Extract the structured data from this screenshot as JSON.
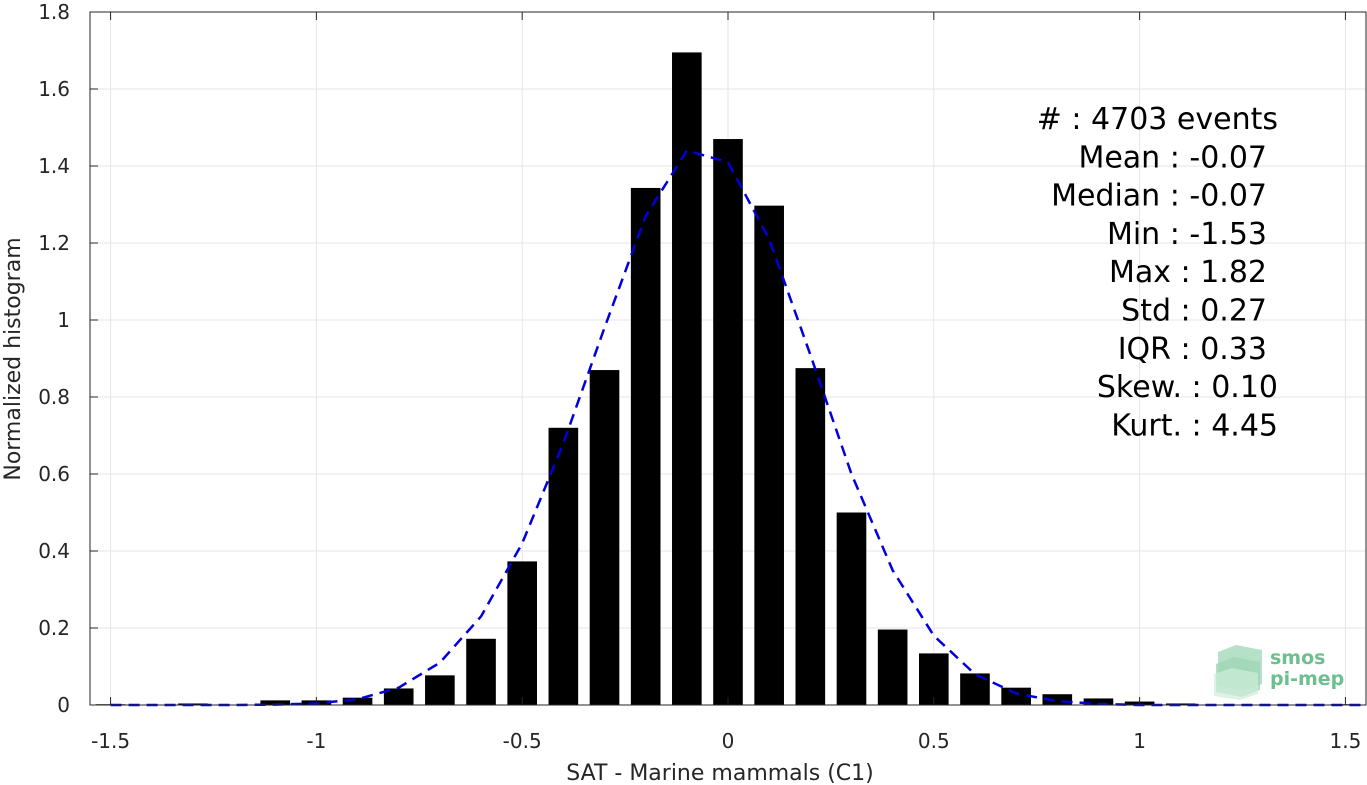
{
  "chart_data": {
    "type": "bar",
    "title": "",
    "xlabel": "SAT - Marine mammals (C1)",
    "ylabel": "Normalized histogram",
    "xlim": [
      -1.55,
      1.55
    ],
    "ylim": [
      0,
      1.8
    ],
    "grid": true,
    "x_ticks": [
      -1.5,
      -1,
      -0.5,
      0,
      0.5,
      1,
      1.5
    ],
    "x_tick_labels": [
      "-1.5",
      "-1",
      "-0.5",
      "0",
      "0.5",
      "1",
      "1.5"
    ],
    "y_ticks": [
      0,
      0.2,
      0.4,
      0.6,
      0.8,
      1,
      1.2,
      1.4,
      1.6,
      1.8
    ],
    "y_tick_labels": [
      "0",
      "0.2",
      "0.4",
      "0.6",
      "0.8",
      "1",
      "1.2",
      "1.4",
      "1.6",
      "1.8"
    ],
    "bin_width": 0.1,
    "bars": [
      {
        "x": -1.5,
        "y": 0.002
      },
      {
        "x": -1.3,
        "y": 0.004
      },
      {
        "x": -1.1,
        "y": 0.012
      },
      {
        "x": -1.0,
        "y": 0.012
      },
      {
        "x": -0.9,
        "y": 0.019
      },
      {
        "x": -0.8,
        "y": 0.043
      },
      {
        "x": -0.7,
        "y": 0.077
      },
      {
        "x": -0.6,
        "y": 0.172
      },
      {
        "x": -0.5,
        "y": 0.373
      },
      {
        "x": -0.4,
        "y": 0.72
      },
      {
        "x": -0.3,
        "y": 0.87
      },
      {
        "x": -0.2,
        "y": 1.343
      },
      {
        "x": -0.1,
        "y": 1.695
      },
      {
        "x": 0.0,
        "y": 1.47
      },
      {
        "x": 0.1,
        "y": 1.297
      },
      {
        "x": 0.2,
        "y": 0.875
      },
      {
        "x": 0.3,
        "y": 0.5
      },
      {
        "x": 0.4,
        "y": 0.196
      },
      {
        "x": 0.5,
        "y": 0.134
      },
      {
        "x": 0.6,
        "y": 0.082
      },
      {
        "x": 0.7,
        "y": 0.045
      },
      {
        "x": 0.8,
        "y": 0.028
      },
      {
        "x": 0.9,
        "y": 0.017
      },
      {
        "x": 1.0,
        "y": 0.009
      },
      {
        "x": 1.1,
        "y": 0.004
      },
      {
        "x": 1.5,
        "y": 0.002
      }
    ],
    "fit_curve": {
      "style": "dashed",
      "color": "#0000dd",
      "points": [
        [
          -1.5,
          0.0
        ],
        [
          -1.2,
          0.0
        ],
        [
          -1.1,
          0.001
        ],
        [
          -1.0,
          0.004
        ],
        [
          -0.9,
          0.015
        ],
        [
          -0.8,
          0.045
        ],
        [
          -0.7,
          0.11
        ],
        [
          -0.6,
          0.23
        ],
        [
          -0.5,
          0.42
        ],
        [
          -0.4,
          0.68
        ],
        [
          -0.3,
          0.98
        ],
        [
          -0.2,
          1.27
        ],
        [
          -0.1,
          1.44
        ],
        [
          0.0,
          1.41
        ],
        [
          0.1,
          1.21
        ],
        [
          0.2,
          0.91
        ],
        [
          0.3,
          0.6
        ],
        [
          0.4,
          0.35
        ],
        [
          0.5,
          0.18
        ],
        [
          0.6,
          0.08
        ],
        [
          0.7,
          0.03
        ],
        [
          0.8,
          0.01
        ],
        [
          0.9,
          0.003
        ],
        [
          1.0,
          0.0
        ],
        [
          1.55,
          0.0
        ]
      ]
    }
  },
  "stats": [
    {
      "text": "#  : 4703 events",
      "anchor_x": 1278
    },
    {
      "text": "Mean : -0.07",
      "anchor_x": 1267
    },
    {
      "text": "Median : -0.07",
      "anchor_x": 1267
    },
    {
      "text": "Min : -1.53",
      "anchor_x": 1267
    },
    {
      "text": "Max : 1.82",
      "anchor_x": 1267
    },
    {
      "text": "Std : 0.27",
      "anchor_x": 1267
    },
    {
      "text": "IQR : 0.33",
      "anchor_x": 1267
    },
    {
      "text": "Skew. : 0.10",
      "anchor_x": 1278
    },
    {
      "text": "Kurt. : 4.45",
      "anchor_x": 1278
    }
  ],
  "logo": {
    "line1": "smos",
    "line2": "pi-mep",
    "color": "#6cbf8e"
  },
  "colors": {
    "bar": "#000000",
    "grid": "#e6e6e6",
    "axis": "#262626",
    "fit": "#0000dd"
  }
}
